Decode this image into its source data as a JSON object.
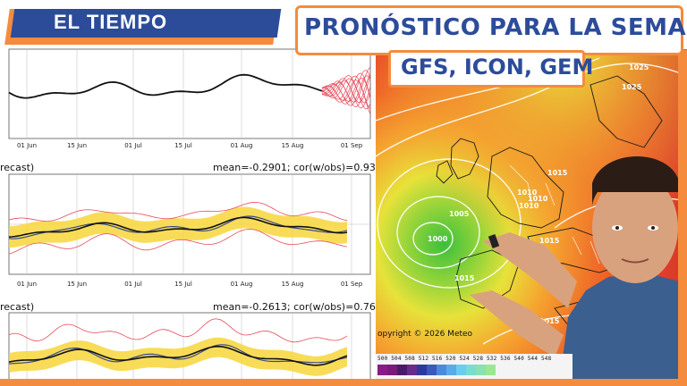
{
  "brand": {
    "label": "EL TIEMPO"
  },
  "headline": {
    "title": "PRONÓSTICO PARA LA SEMANA",
    "subtitle": "GFS, ICON, GEM"
  },
  "panels": [
    {
      "title": "",
      "stats": "",
      "x_ticks": [
        "01 Jun",
        "15 Jun",
        "01 Jul",
        "15 Jul",
        "01 Aug",
        "15 Aug",
        "01 Sep"
      ]
    },
    {
      "title": "recast)",
      "stats": "mean=-0.2901; cor(w/obs)=0.9319",
      "x_ticks": [
        "01 Jun",
        "15 Jun",
        "01 Jul",
        "15 Jul",
        "01 Aug",
        "15 Aug",
        "01 Sep"
      ]
    },
    {
      "title": "recast)",
      "stats": "mean=-0.2613; cor(w/obs)=0.7639",
      "x_ticks": []
    }
  ],
  "map": {
    "isobars": [
      "1025",
      "1025",
      "1015",
      "1010",
      "1010",
      "1010",
      "1005",
      "1000",
      "1015",
      "1015",
      "1015"
    ],
    "copyright": "opyright © 2026 Meteo",
    "scale_labels": "500 504 508 512 516 520 524 528 532 536 540 544 548"
  },
  "colors": {
    "accent": "#f58b3c",
    "brand_blue": "#2c4c9a"
  }
}
